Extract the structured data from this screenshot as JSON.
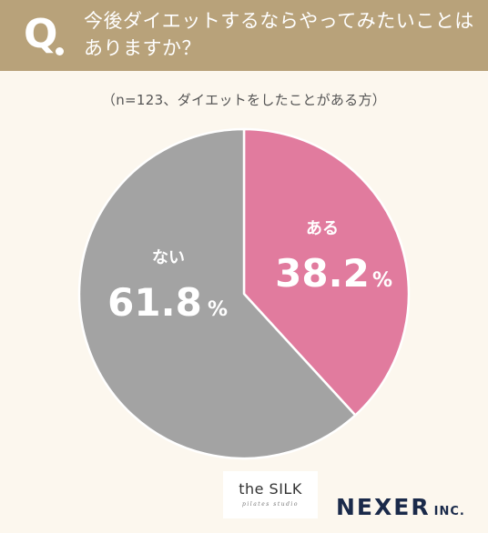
{
  "header": {
    "q_mark": "Q",
    "question_line1": "今後ダイエットするならやってみたいことは",
    "question_line2": "ありますか？",
    "background_color": "#b8a27a"
  },
  "note": "（n=123、ダイエットをしたことがある方）",
  "chart_data": {
    "type": "pie",
    "title": "今後ダイエットするならやってみたいことはありますか？",
    "subtitle": "（n=123、ダイエットをしたことがある方）",
    "slices": [
      {
        "label": "ある",
        "value": 38.2,
        "display": "38.2",
        "unit": "%",
        "color": "#e17b9e"
      },
      {
        "label": "ない",
        "value": 61.8,
        "display": "61.8",
        "unit": "%",
        "color": "#a3a3a3"
      }
    ],
    "start": "12 o'clock",
    "direction": "clockwise",
    "legend": "none",
    "label_color": "#ffffff"
  },
  "logos": {
    "silk_main": "the SILK",
    "silk_sub": "pilates studio",
    "nexer_main": "NEXER",
    "nexer_inc": "INC."
  }
}
